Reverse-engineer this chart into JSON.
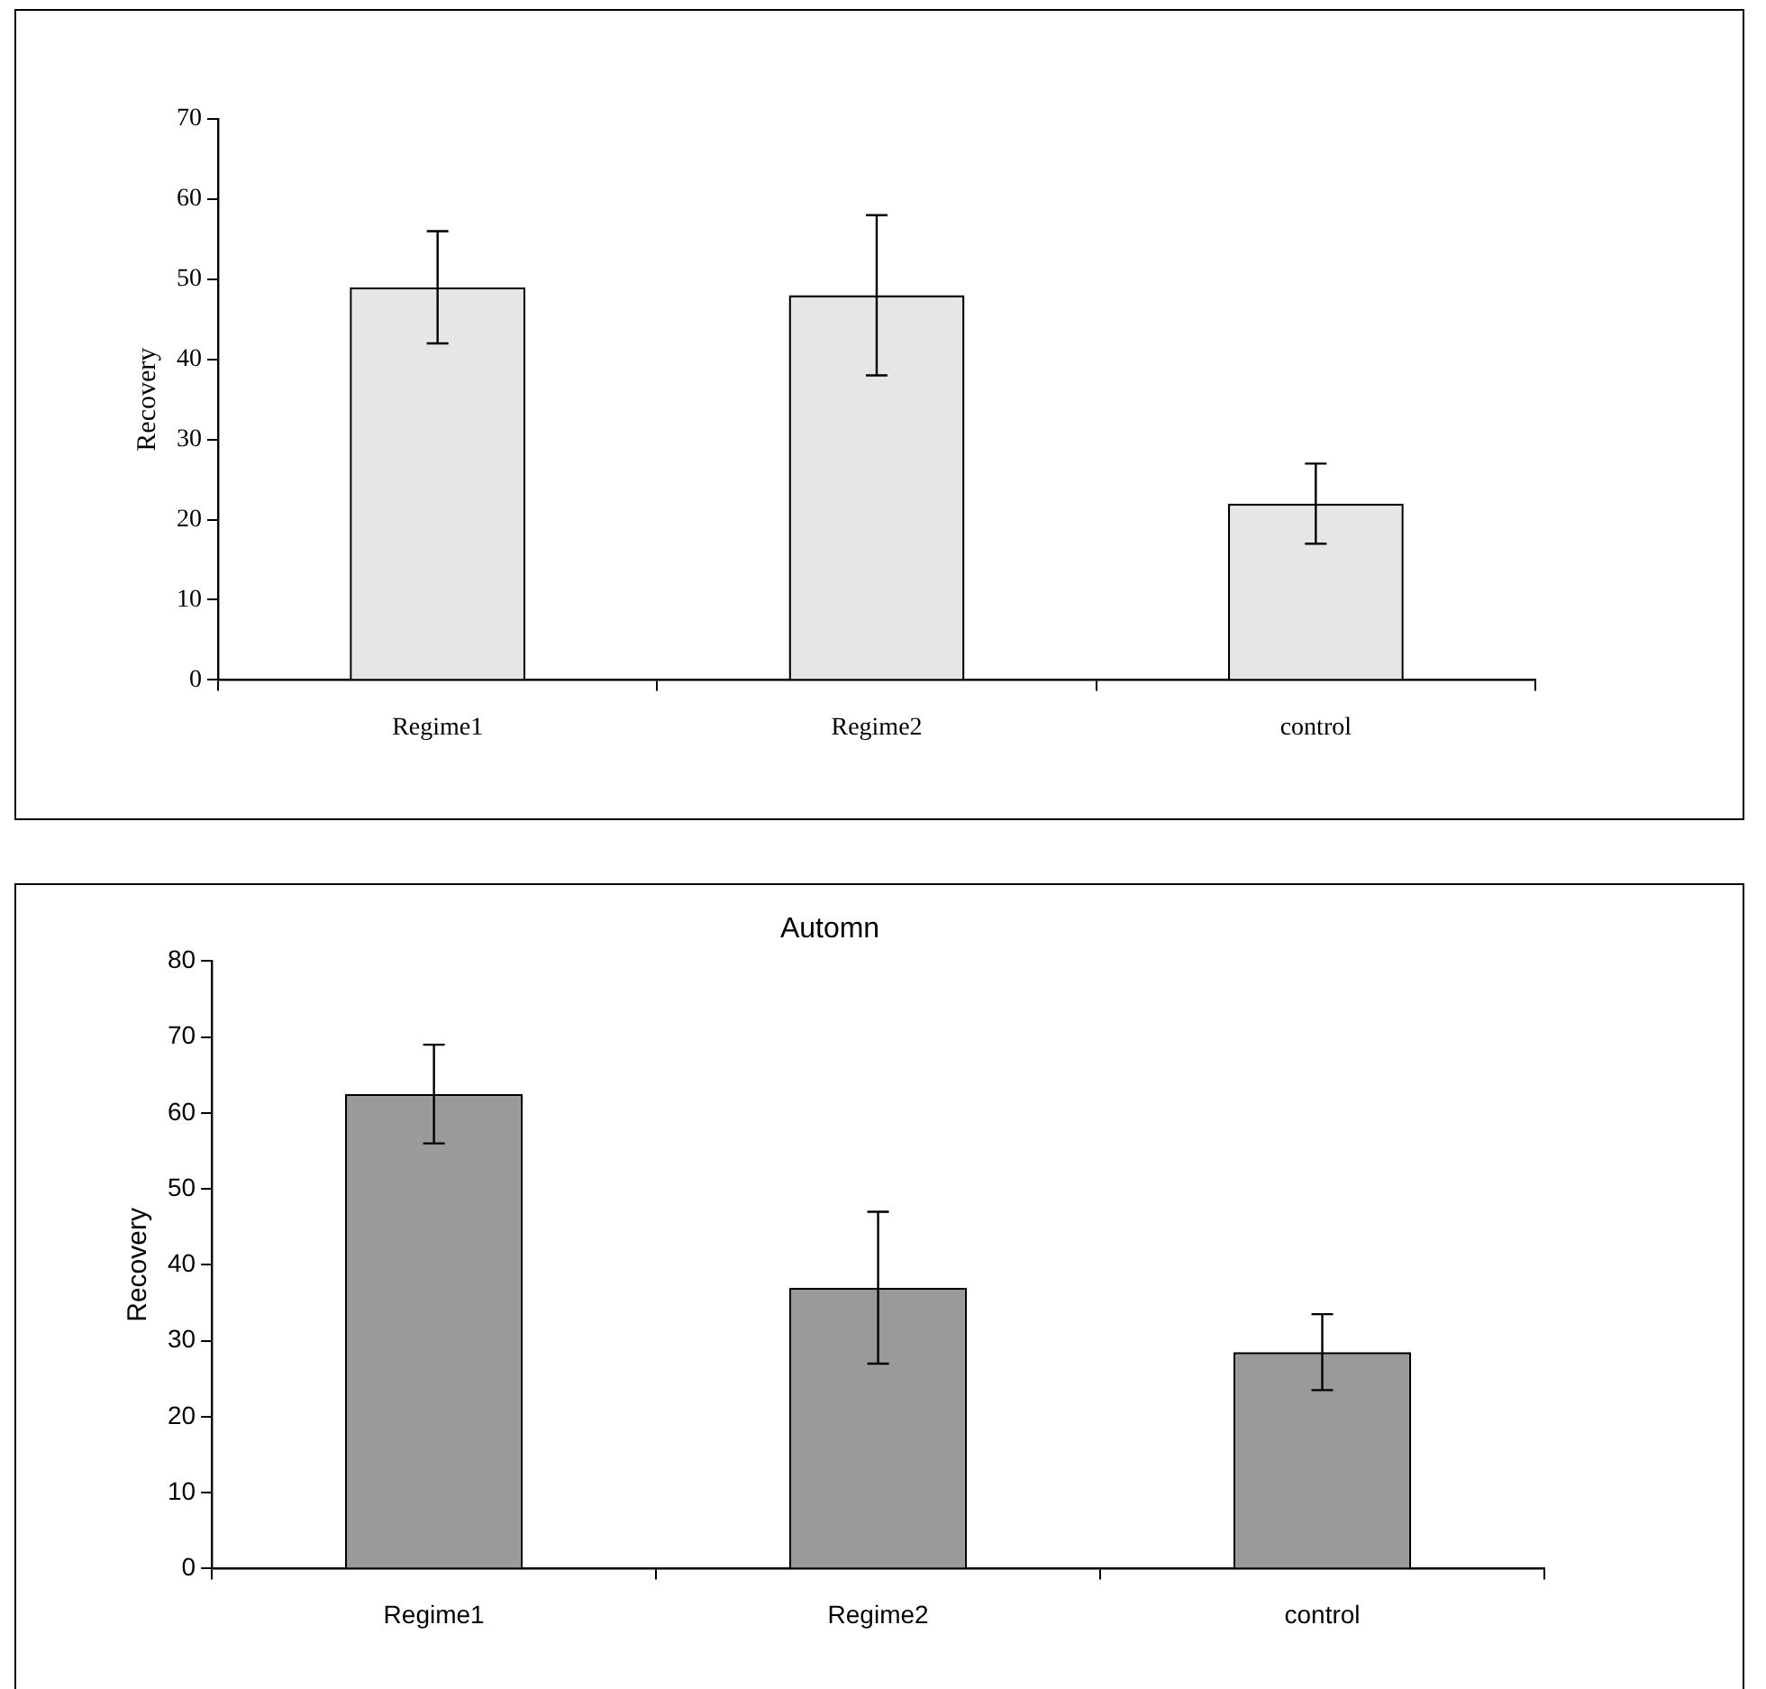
{
  "chart_data": [
    {
      "type": "bar",
      "ylabel": "Recovery",
      "categories": [
        "Regime1",
        "Regime2",
        "control"
      ],
      "values": [
        49,
        48,
        22
      ],
      "errors": [
        7,
        10,
        5
      ],
      "color": "#e6e6e6",
      "ylim": [
        0,
        70
      ],
      "yticks": [
        0,
        10,
        20,
        30,
        40,
        50,
        60,
        70
      ],
      "grid": false,
      "legend": false
    },
    {
      "type": "bar",
      "title": "Automn",
      "ylabel": "Recovery",
      "categories": [
        "Regime1",
        "Regime2",
        "control"
      ],
      "values": [
        62.5,
        37,
        28.5
      ],
      "errors": [
        6.5,
        10,
        5
      ],
      "color": "#9a9a9a",
      "ylim": [
        0,
        80
      ],
      "yticks": [
        0,
        10,
        20,
        30,
        40,
        50,
        60,
        70,
        80
      ],
      "grid": false,
      "legend": false
    }
  ]
}
